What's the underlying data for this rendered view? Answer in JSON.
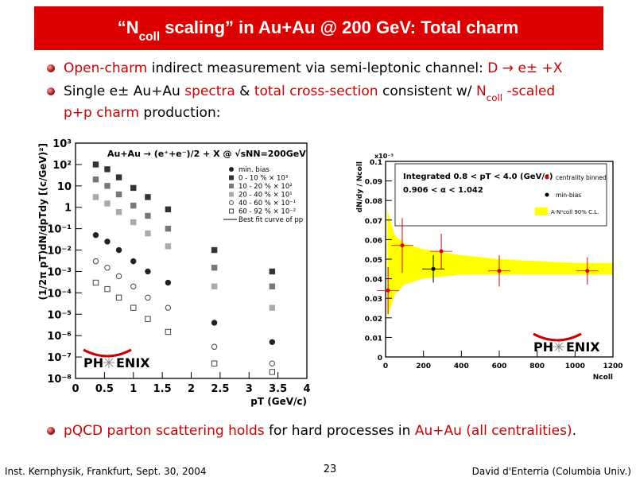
{
  "title": [
    {
      "text": "“N"
    },
    {
      "text": "coll",
      "sub": true
    },
    {
      "text": " scaling” in Au+Au @ 200 GeV: Total charm"
    }
  ],
  "bullets": [
    {
      "lines": [
        [
          {
            "text": "Open-charm",
            "color": "#cc0000"
          },
          {
            "text": " indirect measurement via semi-leptonic channel: "
          },
          {
            "text": "D → e± +X",
            "color": "#cc0000"
          }
        ]
      ]
    },
    {
      "lines": [
        [
          {
            "text": "Single e± Au+Au "
          },
          {
            "text": "spectra",
            "color": "#cc0000"
          },
          {
            "text": " & "
          },
          {
            "text": "total cross-section",
            "color": "#cc0000"
          },
          {
            "text": " consistent w/ "
          },
          {
            "text": "N",
            "color": "#cc0000"
          },
          {
            "text": "coll",
            "color": "#cc0000",
            "sub": true
          },
          {
            "text": " -scaled",
            "color": "#cc0000"
          }
        ],
        [
          {
            "text": "p+p charm",
            "color": "#cc0000"
          },
          {
            "text": " production:"
          }
        ]
      ]
    },
    {
      "lines": [
        [
          {
            "text": "pQCD parton scattering holds",
            "color": "#cc0000"
          },
          {
            "text": " for hard processes in "
          },
          {
            "text": "Au+Au (all centralities)",
            "color": "#cc0000"
          },
          {
            "text": "."
          }
        ]
      ]
    }
  ],
  "footer": {
    "left": "Inst. Kernphysik, Frankfurt, Sept. 30, 2004",
    "page": "23",
    "right": "David d'Enterria (Columbia Univ.)"
  },
  "chart_data": [
    {
      "type": "scatter",
      "log_y": true,
      "annotation": "Au+Au → (e⁺+e⁻)/2 + X @ √sNN=200GeV",
      "ylabel": "(1/2π pT)dN/dpTdy [(c/GeV)²]",
      "xlabel": "pT (GeV/c)",
      "xlim": [
        0,
        4
      ],
      "xticks": [
        0,
        0.5,
        1,
        1.5,
        2,
        2.5,
        3,
        3.5,
        4
      ],
      "ylim": [
        1e-08,
        1000
      ],
      "yticks": [
        {
          "value": 1e-08,
          "label": "10⁻⁸"
        },
        {
          "value": 1e-07,
          "label": "10⁻⁷"
        },
        {
          "value": 1e-06,
          "label": "10⁻⁶"
        },
        {
          "value": 1e-05,
          "label": "10⁻⁵"
        },
        {
          "value": 0.0001,
          "label": "10⁻⁴"
        },
        {
          "value": 0.001,
          "label": "10⁻³"
        },
        {
          "value": 0.01,
          "label": "10⁻²"
        },
        {
          "value": 0.1,
          "label": "10⁻¹"
        },
        1,
        10,
        {
          "value": 100,
          "label": "10²"
        },
        {
          "value": 1000,
          "label": "10³"
        }
      ],
      "x": [
        0.35,
        0.55,
        0.75,
        1.0,
        1.25,
        1.6,
        2.4,
        3.4
      ],
      "series": [
        {
          "name": "min. bias",
          "color": "#222222",
          "marker": "circle",
          "filled": true,
          "values": [
            0.05,
            0.025,
            0.01,
            0.003,
            0.001,
            0.0003,
            4e-06,
            5e-07
          ]
        },
        {
          "name": "0 - 10 % × 10³",
          "color": "#333333",
          "marker": "square",
          "filled": true,
          "values": [
            100,
            60,
            25,
            8,
            3,
            0.8,
            0.01,
            0.001
          ]
        },
        {
          "name": "10 - 20 % × 10²",
          "color": "#777777",
          "marker": "square",
          "filled": true,
          "values": [
            20,
            10,
            4,
            1.2,
            0.4,
            0.1,
            0.0015,
            0.0002
          ]
        },
        {
          "name": "20 - 40 % × 10¹",
          "color": "#aaaaaa",
          "marker": "square",
          "filled": true,
          "values": [
            3,
            1.5,
            0.6,
            0.2,
            0.06,
            0.015,
            0.0002,
            2e-05
          ]
        },
        {
          "name": "40 - 60 % × 10⁻¹",
          "color": "#444444",
          "marker": "circle",
          "filled": false,
          "values": [
            0.003,
            0.0015,
            0.0006,
            0.0002,
            6e-05,
            2e-05,
            3e-07,
            5e-08
          ]
        },
        {
          "name": "60 - 92 % × 10⁻²",
          "color": "#444444",
          "marker": "square",
          "filled": false,
          "values": [
            0.0003,
            0.00015,
            6e-05,
            2e-05,
            6e-06,
            1.5e-06,
            5e-08,
            2e-08
          ]
        }
      ],
      "fit_label": "Best fit curve of pp",
      "logo": [
        "PH",
        "ENIX"
      ]
    },
    {
      "type": "scatter",
      "ylabel": "dN/dy / Ncoll",
      "xlabel": "Ncoll",
      "exponent_label": "x10⁻³",
      "text": [
        "Integrated 0.8 < pT < 4.0 (GeV/c)",
        "0.906 < α < 1.042"
      ],
      "xlim": [
        0,
        1200
      ],
      "xticks": [
        0,
        200,
        400,
        600,
        800,
        1000,
        1200
      ],
      "ylim": [
        0,
        0.1
      ],
      "yticks": [
        0,
        0.01,
        0.02,
        0.03,
        0.04,
        0.05,
        0.06,
        0.07,
        0.08,
        0.09,
        0.1
      ],
      "series": [
        {
          "name": "centrality binned",
          "color": "#dd0000",
          "x": [
            13,
            88,
            294,
            600,
            1065
          ],
          "values": [
            0.034,
            0.057,
            0.054,
            0.044,
            0.044
          ],
          "errors": [
            0.012,
            0.014,
            0.009,
            0.008,
            0.007
          ]
        },
        {
          "name": "min-bias",
          "color": "#000000",
          "x": [
            252
          ],
          "values": [
            0.045
          ],
          "errors": [
            0.007
          ]
        }
      ],
      "band": {
        "name": "A·Nᵅcoll 90% C.L.",
        "color": "#ffff00",
        "x": [
          10,
          50,
          100,
          200,
          400,
          600,
          800,
          1000,
          1200
        ],
        "low": [
          0.02,
          0.032,
          0.037,
          0.04,
          0.042,
          0.042,
          0.042,
          0.042,
          0.042
        ],
        "high": [
          0.075,
          0.062,
          0.058,
          0.055,
          0.052,
          0.05,
          0.049,
          0.048,
          0.048
        ]
      },
      "logo": [
        "PH",
        "ENIX"
      ]
    }
  ]
}
